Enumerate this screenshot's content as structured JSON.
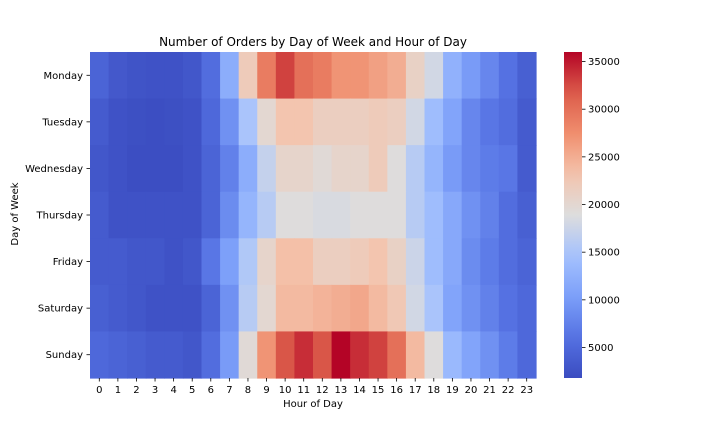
{
  "chart_data": {
    "type": "heatmap",
    "title": "Number of Orders by Day of Week and Hour of Day",
    "xlabel": "Hour of Day",
    "ylabel": "Day of Week",
    "x": [
      "0",
      "1",
      "2",
      "3",
      "4",
      "5",
      "6",
      "7",
      "8",
      "9",
      "10",
      "11",
      "12",
      "13",
      "14",
      "15",
      "16",
      "17",
      "18",
      "19",
      "20",
      "21",
      "22",
      "23"
    ],
    "y": [
      "Monday",
      "Tuesday",
      "Wednesday",
      "Thursday",
      "Friday",
      "Saturday",
      "Sunday"
    ],
    "values": [
      [
        4500,
        3200,
        2700,
        2500,
        2500,
        3000,
        5500,
        12000,
        22000,
        29000,
        33000,
        30000,
        29000,
        27000,
        27000,
        26000,
        25000,
        21000,
        18000,
        12500,
        10000,
        8000,
        6000,
        4000
      ],
      [
        3500,
        2500,
        2200,
        2000,
        2200,
        2500,
        5000,
        9000,
        15000,
        20000,
        23000,
        23000,
        21500,
        21500,
        21500,
        22000,
        21500,
        18000,
        14000,
        11000,
        8000,
        6500,
        5500,
        3500
      ],
      [
        3000,
        2500,
        2000,
        2000,
        2000,
        2500,
        4500,
        7500,
        12000,
        17000,
        20500,
        20500,
        19500,
        20500,
        20500,
        22000,
        19000,
        16000,
        13000,
        10000,
        8000,
        7000,
        6500,
        3500
      ],
      [
        3500,
        2500,
        2500,
        2500,
        2500,
        2500,
        4500,
        8500,
        13000,
        16000,
        19000,
        19000,
        18500,
        18500,
        19000,
        19000,
        19000,
        16000,
        14000,
        11500,
        9000,
        7500,
        5500,
        4000
      ],
      [
        3500,
        3500,
        3000,
        3000,
        2500,
        3000,
        6500,
        10500,
        15500,
        20500,
        23500,
        23500,
        21500,
        21500,
        22000,
        23000,
        21000,
        17500,
        14000,
        11500,
        8500,
        7000,
        5500,
        4500
      ],
      [
        4000,
        3500,
        3000,
        2500,
        2500,
        2500,
        4500,
        9000,
        16000,
        20000,
        24000,
        24000,
        24500,
        25000,
        25500,
        24000,
        22500,
        18000,
        15000,
        11000,
        9000,
        7500,
        6000,
        5000
      ],
      [
        5000,
        4500,
        4000,
        3500,
        3500,
        3000,
        5500,
        10000,
        19500,
        27000,
        32000,
        34000,
        32000,
        36000,
        34000,
        33000,
        30000,
        24000,
        19000,
        13500,
        11000,
        9000,
        7000,
        5000
      ]
    ],
    "colormap": "coolwarm",
    "vmin": 1800,
    "vmax": 36000,
    "colorbar_ticks": [
      "5000",
      "10000",
      "15000",
      "20000",
      "25000",
      "30000",
      "35000"
    ],
    "colorbar_values": [
      5000,
      10000,
      15000,
      20000,
      25000,
      30000,
      35000
    ]
  }
}
